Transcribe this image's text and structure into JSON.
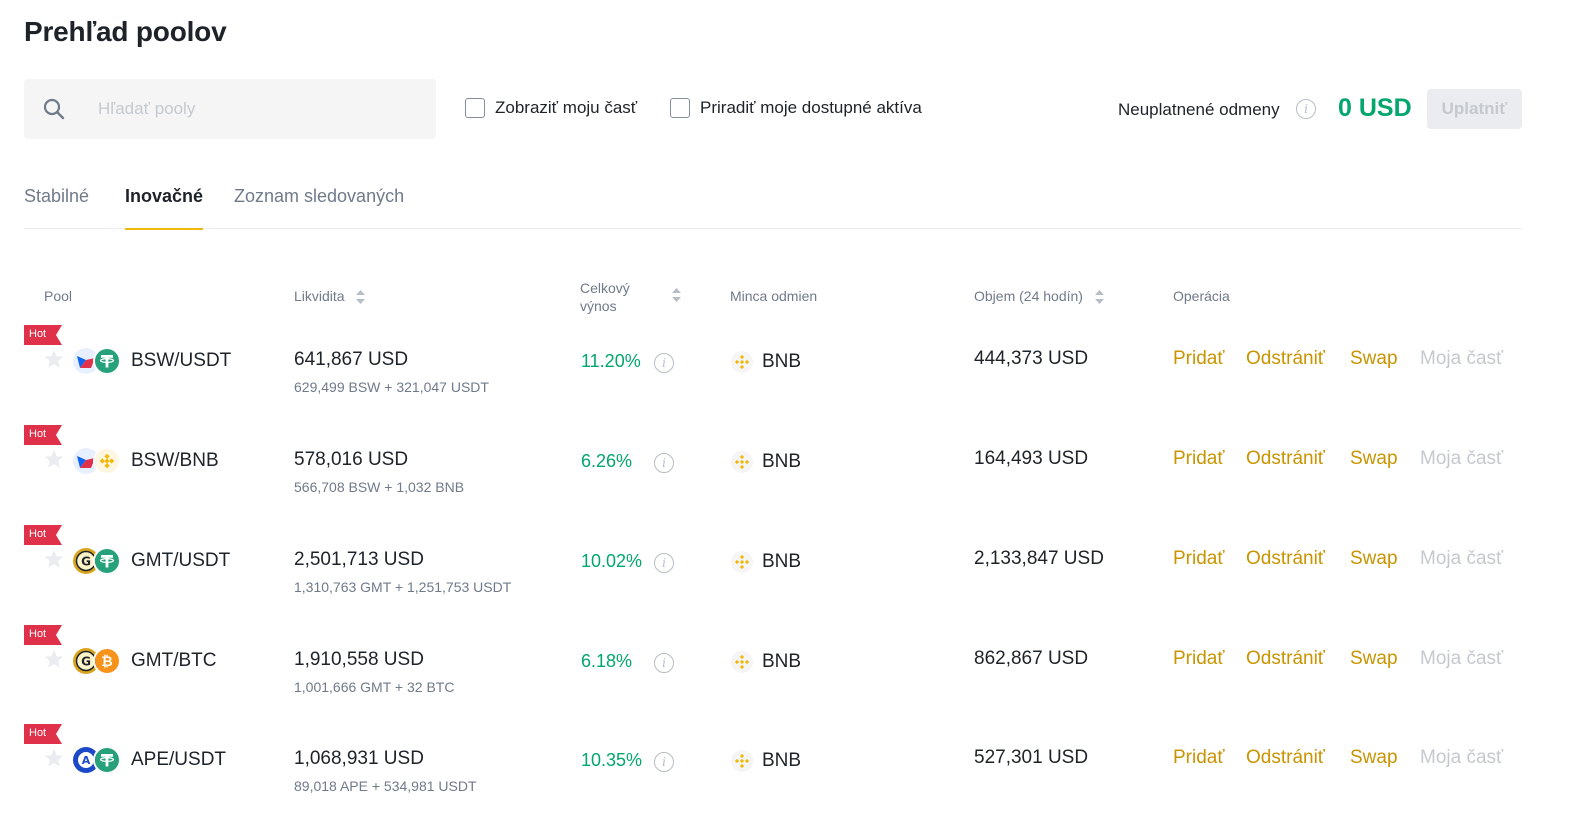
{
  "page": {
    "title": "Prehľad poolov"
  },
  "toolbar": {
    "search_placeholder": "Hľadať pooly",
    "search_value": "",
    "show_my_share_label": "Zobraziť moju časť",
    "assign_assets_label": "Priradiť moje dostupné aktíva",
    "unclaimed_rewards_label": "Neuplatnené odmeny",
    "unclaimed_rewards_value": "0 USD",
    "claim_label": "Uplatniť"
  },
  "tabs": [
    {
      "label": "Stabilné",
      "active": false
    },
    {
      "label": "Inovačné",
      "active": true
    },
    {
      "label": "Zoznam sledovaných",
      "active": false
    }
  ],
  "columns": {
    "pool": "Pool",
    "liquidity": "Likvidita",
    "total_yield_line1": "Celkový",
    "total_yield_line2": "výnos",
    "reward_coin": "Minca odmien",
    "volume": "Objem (24 hodín)",
    "operation": "Operácia"
  },
  "operations": {
    "add": "Pridať",
    "remove": "Odstrániť",
    "swap": "Swap",
    "my_share": "Moja časť"
  },
  "rows": [
    {
      "hot": "Hot",
      "pair": "BSW/USDT",
      "coin_a": "bsw-icon",
      "coin_b": "usdt-icon",
      "liquidity": "641,867 USD",
      "liquidity_detail": "629,499 BSW + 321,047 USDT",
      "apy": "11.20%",
      "reward_coin": "BNB",
      "volume": "444,373 USD"
    },
    {
      "hot": "Hot",
      "pair": "BSW/BNB",
      "coin_a": "bsw-icon",
      "coin_b": "bnb-icon",
      "liquidity": "578,016 USD",
      "liquidity_detail": "566,708 BSW + 1,032 BNB",
      "apy": "6.26%",
      "reward_coin": "BNB",
      "volume": "164,493 USD"
    },
    {
      "hot": "Hot",
      "pair": "GMT/USDT",
      "coin_a": "gmt-icon",
      "coin_b": "usdt-icon",
      "liquidity": "2,501,713 USD",
      "liquidity_detail": "1,310,763 GMT + 1,251,753 USDT",
      "apy": "10.02%",
      "reward_coin": "BNB",
      "volume": "2,133,847 USD"
    },
    {
      "hot": "Hot",
      "pair": "GMT/BTC",
      "coin_a": "gmt-icon",
      "coin_b": "btc-icon",
      "liquidity": "1,910,558 USD",
      "liquidity_detail": "1,001,666 GMT + 32 BTC",
      "apy": "6.18%",
      "reward_coin": "BNB",
      "volume": "862,867 USD"
    },
    {
      "hot": "Hot",
      "pair": "APE/USDT",
      "coin_a": "ape-icon",
      "coin_b": "usdt-icon",
      "liquidity": "1,068,931 USD",
      "liquidity_detail": "89,018 APE + 534,981 USDT",
      "apy": "10.35%",
      "reward_coin": "BNB",
      "volume": "527,301 USD"
    }
  ],
  "colors": {
    "accent": "#c99400",
    "positive": "#03a66d",
    "hot_badge": "#e0314b",
    "tab_underline": "#f0b90b",
    "disabled": "#c5c9cf"
  }
}
